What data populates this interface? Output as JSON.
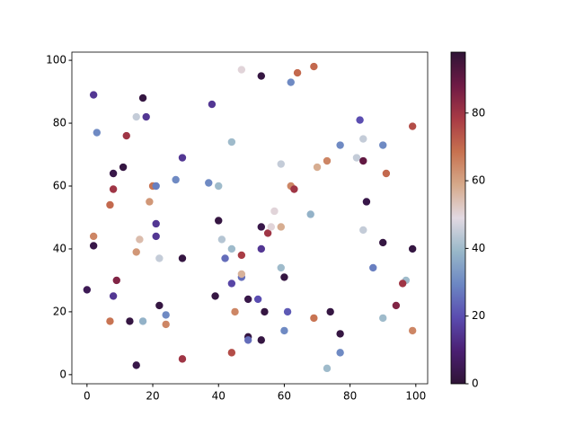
{
  "chart_data": {
    "type": "scatter",
    "x": [
      0,
      2,
      3,
      2,
      2,
      12,
      17,
      15,
      18,
      8,
      11,
      8,
      7,
      20,
      21,
      19,
      29,
      38,
      37,
      27,
      40,
      44,
      21,
      21,
      16,
      22,
      15,
      9,
      8,
      7,
      13,
      17,
      22,
      24,
      24,
      15,
      29,
      29,
      40,
      41,
      42,
      44,
      39,
      44,
      47,
      47,
      47,
      45,
      44,
      49,
      49,
      49,
      47,
      53,
      62,
      64,
      69,
      53,
      55,
      56,
      57,
      59,
      53,
      59,
      62,
      63,
      68,
      70,
      73,
      59,
      60,
      52,
      54,
      61,
      53,
      60,
      69,
      74,
      77,
      77,
      73,
      77,
      83,
      84,
      82,
      84,
      85,
      84,
      90,
      91,
      99,
      90,
      99,
      87,
      97,
      96,
      94,
      90,
      99
    ],
    "values": [
      27,
      89,
      77,
      44,
      41,
      76,
      88,
      82,
      82,
      64,
      66,
      59,
      54,
      60,
      60,
      55,
      69,
      86,
      61,
      62,
      60,
      74,
      48,
      44,
      43,
      37,
      39,
      30,
      25,
      17,
      17,
      17,
      22,
      19,
      16,
      3,
      5,
      37,
      49,
      43,
      37,
      40,
      25,
      29,
      31,
      32,
      38,
      20,
      7,
      12,
      11,
      24,
      97,
      95,
      93,
      96,
      98,
      47,
      45,
      47,
      52,
      47,
      40,
      67,
      60,
      59,
      51,
      66,
      68,
      34,
      31,
      24,
      20,
      20,
      11,
      14,
      18,
      20,
      13,
      7,
      2,
      73,
      81,
      75,
      69,
      68,
      55,
      46,
      73,
      64,
      79,
      42,
      40,
      34,
      30,
      29,
      22,
      18,
      14
    ],
    "c": [
      5,
      15,
      30,
      65,
      3,
      80,
      2,
      45,
      15,
      3,
      2,
      80,
      70,
      68,
      28,
      62,
      15,
      15,
      30,
      30,
      40,
      40,
      15,
      15,
      55,
      45,
      62,
      85,
      15,
      68,
      2,
      38,
      2,
      30,
      65,
      3,
      80,
      2,
      2,
      43,
      25,
      40,
      2,
      18,
      25,
      57,
      78,
      65,
      75,
      2,
      25,
      3,
      50,
      2,
      30,
      70,
      70,
      3,
      80,
      50,
      50,
      58,
      15,
      45,
      65,
      80,
      38,
      58,
      65,
      40,
      2,
      20,
      2,
      22,
      2,
      30,
      68,
      2,
      2,
      30,
      40,
      30,
      20,
      45,
      45,
      90,
      3,
      45,
      30,
      70,
      75,
      2,
      2,
      28,
      40,
      80,
      85,
      40,
      65
    ],
    "colormap": [
      "#2f1436",
      "#4b1f73",
      "#5a4cb0",
      "#6c87c3",
      "#99b8c9",
      "#e2d9e2",
      "#d6a98a",
      "#c7714f",
      "#a83a45",
      "#6e1a45",
      "#2f1436"
    ],
    "clim": [
      0,
      98
    ],
    "cticks": [
      0,
      20,
      40,
      60,
      80
    ],
    "xlim": [
      -4.6,
      103.6
    ],
    "xticks": [
      0,
      20,
      40,
      60,
      80,
      100
    ],
    "ylim": [
      -2.9,
      102.6
    ],
    "yticks": [
      0,
      20,
      40,
      60,
      80,
      100
    ]
  }
}
